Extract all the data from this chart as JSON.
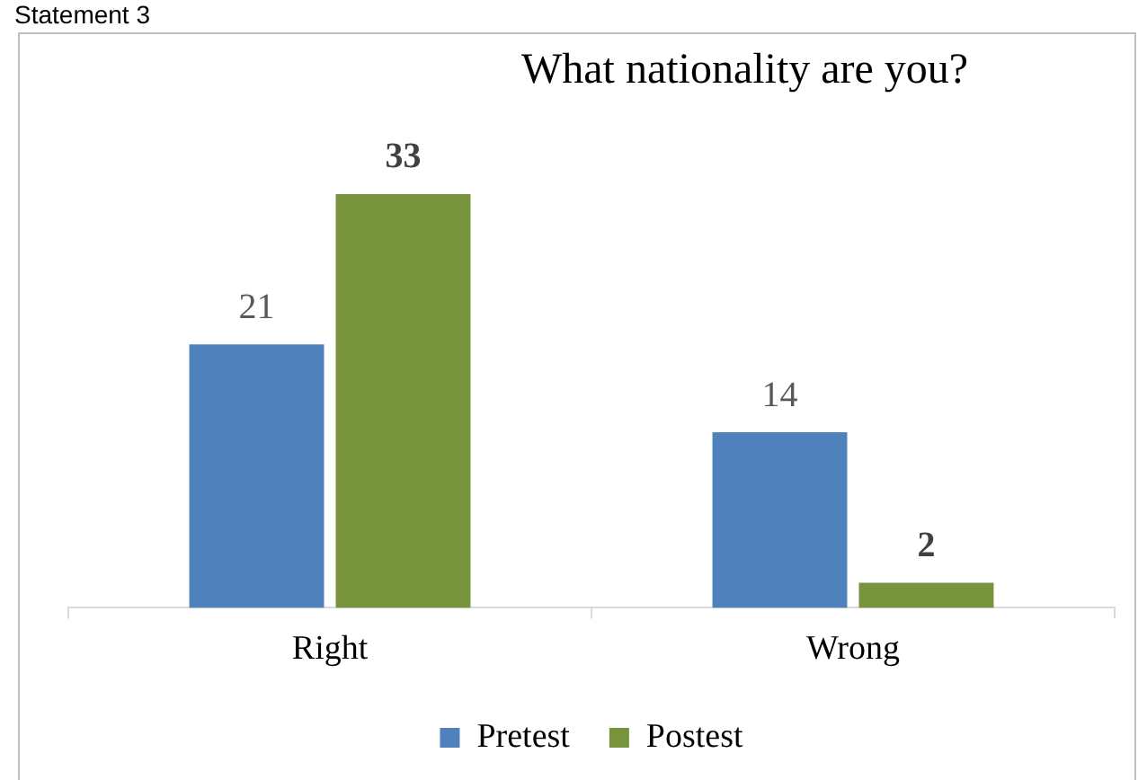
{
  "chart_data": {
    "type": "bar",
    "title": "What nationality are you?",
    "annotations": [
      "Statement 3"
    ],
    "categories": [
      "Right",
      "Wrong"
    ],
    "series": [
      {
        "name": "Pretest",
        "color": "#4f81bd",
        "values": [
          21,
          14
        ]
      },
      {
        "name": "Postest",
        "color": "#77933c",
        "values": [
          33,
          2
        ]
      }
    ],
    "data_labels": true,
    "legend": "bottom",
    "grid": false
  }
}
